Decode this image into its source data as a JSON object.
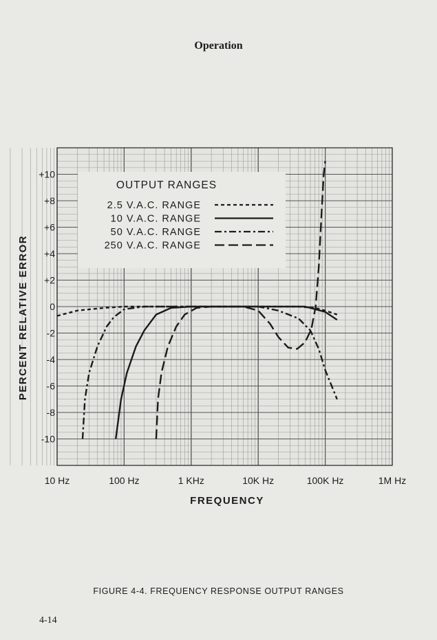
{
  "page": {
    "header": "Operation",
    "caption": "FIGURE 4-4.  FREQUENCY RESPONSE OUTPUT RANGES",
    "page_number": "4-14"
  },
  "chart_data": {
    "type": "line",
    "title": "",
    "xlabel": "FREQUENCY",
    "ylabel": "PERCENT RELATIVE ERROR",
    "x_scale": "log",
    "xlim": [
      10,
      1000000
    ],
    "ylim": [
      -12,
      12
    ],
    "grid": true,
    "x_tick_labels": [
      {
        "value": 10,
        "label": "10 Hz"
      },
      {
        "value": 100,
        "label": "100 Hz"
      },
      {
        "value": 1000,
        "label": "1 KHz"
      },
      {
        "value": 10000,
        "label": "10K Hz"
      },
      {
        "value": 100000,
        "label": "100K Hz"
      },
      {
        "value": 1000000,
        "label": "1M Hz"
      }
    ],
    "y_tick_labels": [
      {
        "value": 10,
        "label": "+10"
      },
      {
        "value": 8,
        "label": "+8"
      },
      {
        "value": 6,
        "label": "+6"
      },
      {
        "value": 4,
        "label": "+4"
      },
      {
        "value": 2,
        "label": "+2"
      },
      {
        "value": 0,
        "label": "0"
      },
      {
        "value": -2,
        "label": "-2"
      },
      {
        "value": -4,
        "label": "-4"
      },
      {
        "value": -6,
        "label": "-6"
      },
      {
        "value": -8,
        "label": "-8"
      },
      {
        "value": -10,
        "label": "-10"
      }
    ],
    "legend": {
      "title": "OUTPUT  RANGES",
      "position": "top-left"
    },
    "series": [
      {
        "name": "2.5  V.A.C.  RANGE",
        "dash": "5,4",
        "points": [
          [
            10,
            -0.7
          ],
          [
            20,
            -0.3
          ],
          [
            50,
            -0.1
          ],
          [
            100,
            0
          ],
          [
            1000,
            0
          ],
          [
            10000,
            0
          ],
          [
            40000,
            0
          ],
          [
            70000,
            -0.1
          ],
          [
            100000,
            -0.3
          ],
          [
            150000,
            -0.6
          ]
        ]
      },
      {
        "name": "10  V.A.C.  RANGE",
        "dash": "",
        "points": [
          [
            75,
            -10
          ],
          [
            90,
            -7
          ],
          [
            110,
            -5
          ],
          [
            150,
            -3
          ],
          [
            200,
            -1.8
          ],
          [
            300,
            -0.6
          ],
          [
            500,
            -0.1
          ],
          [
            1000,
            0
          ],
          [
            10000,
            0
          ],
          [
            50000,
            0
          ],
          [
            100000,
            -0.4
          ],
          [
            150000,
            -1
          ]
        ]
      },
      {
        "name": "50  V.A.C.  RANGE",
        "dash": "10,4,3,4",
        "points": [
          [
            24,
            -10
          ],
          [
            26,
            -7
          ],
          [
            30,
            -5
          ],
          [
            40,
            -3
          ],
          [
            55,
            -1.5
          ],
          [
            70,
            -0.8
          ],
          [
            100,
            -0.2
          ],
          [
            200,
            0
          ],
          [
            1000,
            0
          ],
          [
            10000,
            0
          ],
          [
            20000,
            -0.3
          ],
          [
            40000,
            -0.9
          ],
          [
            60000,
            -1.8
          ],
          [
            80000,
            -3.2
          ],
          [
            100000,
            -4.8
          ],
          [
            150000,
            -7
          ]
        ]
      },
      {
        "name": "250  V.A.C.  RANGE",
        "dash": "14,6",
        "points": [
          [
            300,
            -10
          ],
          [
            320,
            -7
          ],
          [
            360,
            -5
          ],
          [
            450,
            -3
          ],
          [
            600,
            -1.5
          ],
          [
            800,
            -0.6
          ],
          [
            1200,
            -0.1
          ],
          [
            2000,
            0
          ],
          [
            6000,
            0
          ],
          [
            10000,
            -0.3
          ],
          [
            15000,
            -1.3
          ],
          [
            20000,
            -2.3
          ],
          [
            28000,
            -3.1
          ],
          [
            38000,
            -3.2
          ],
          [
            50000,
            -2.7
          ],
          [
            62000,
            -1.7
          ],
          [
            72000,
            0
          ],
          [
            80000,
            3
          ],
          [
            88000,
            7
          ],
          [
            95000,
            10
          ],
          [
            100000,
            11
          ]
        ]
      }
    ]
  }
}
